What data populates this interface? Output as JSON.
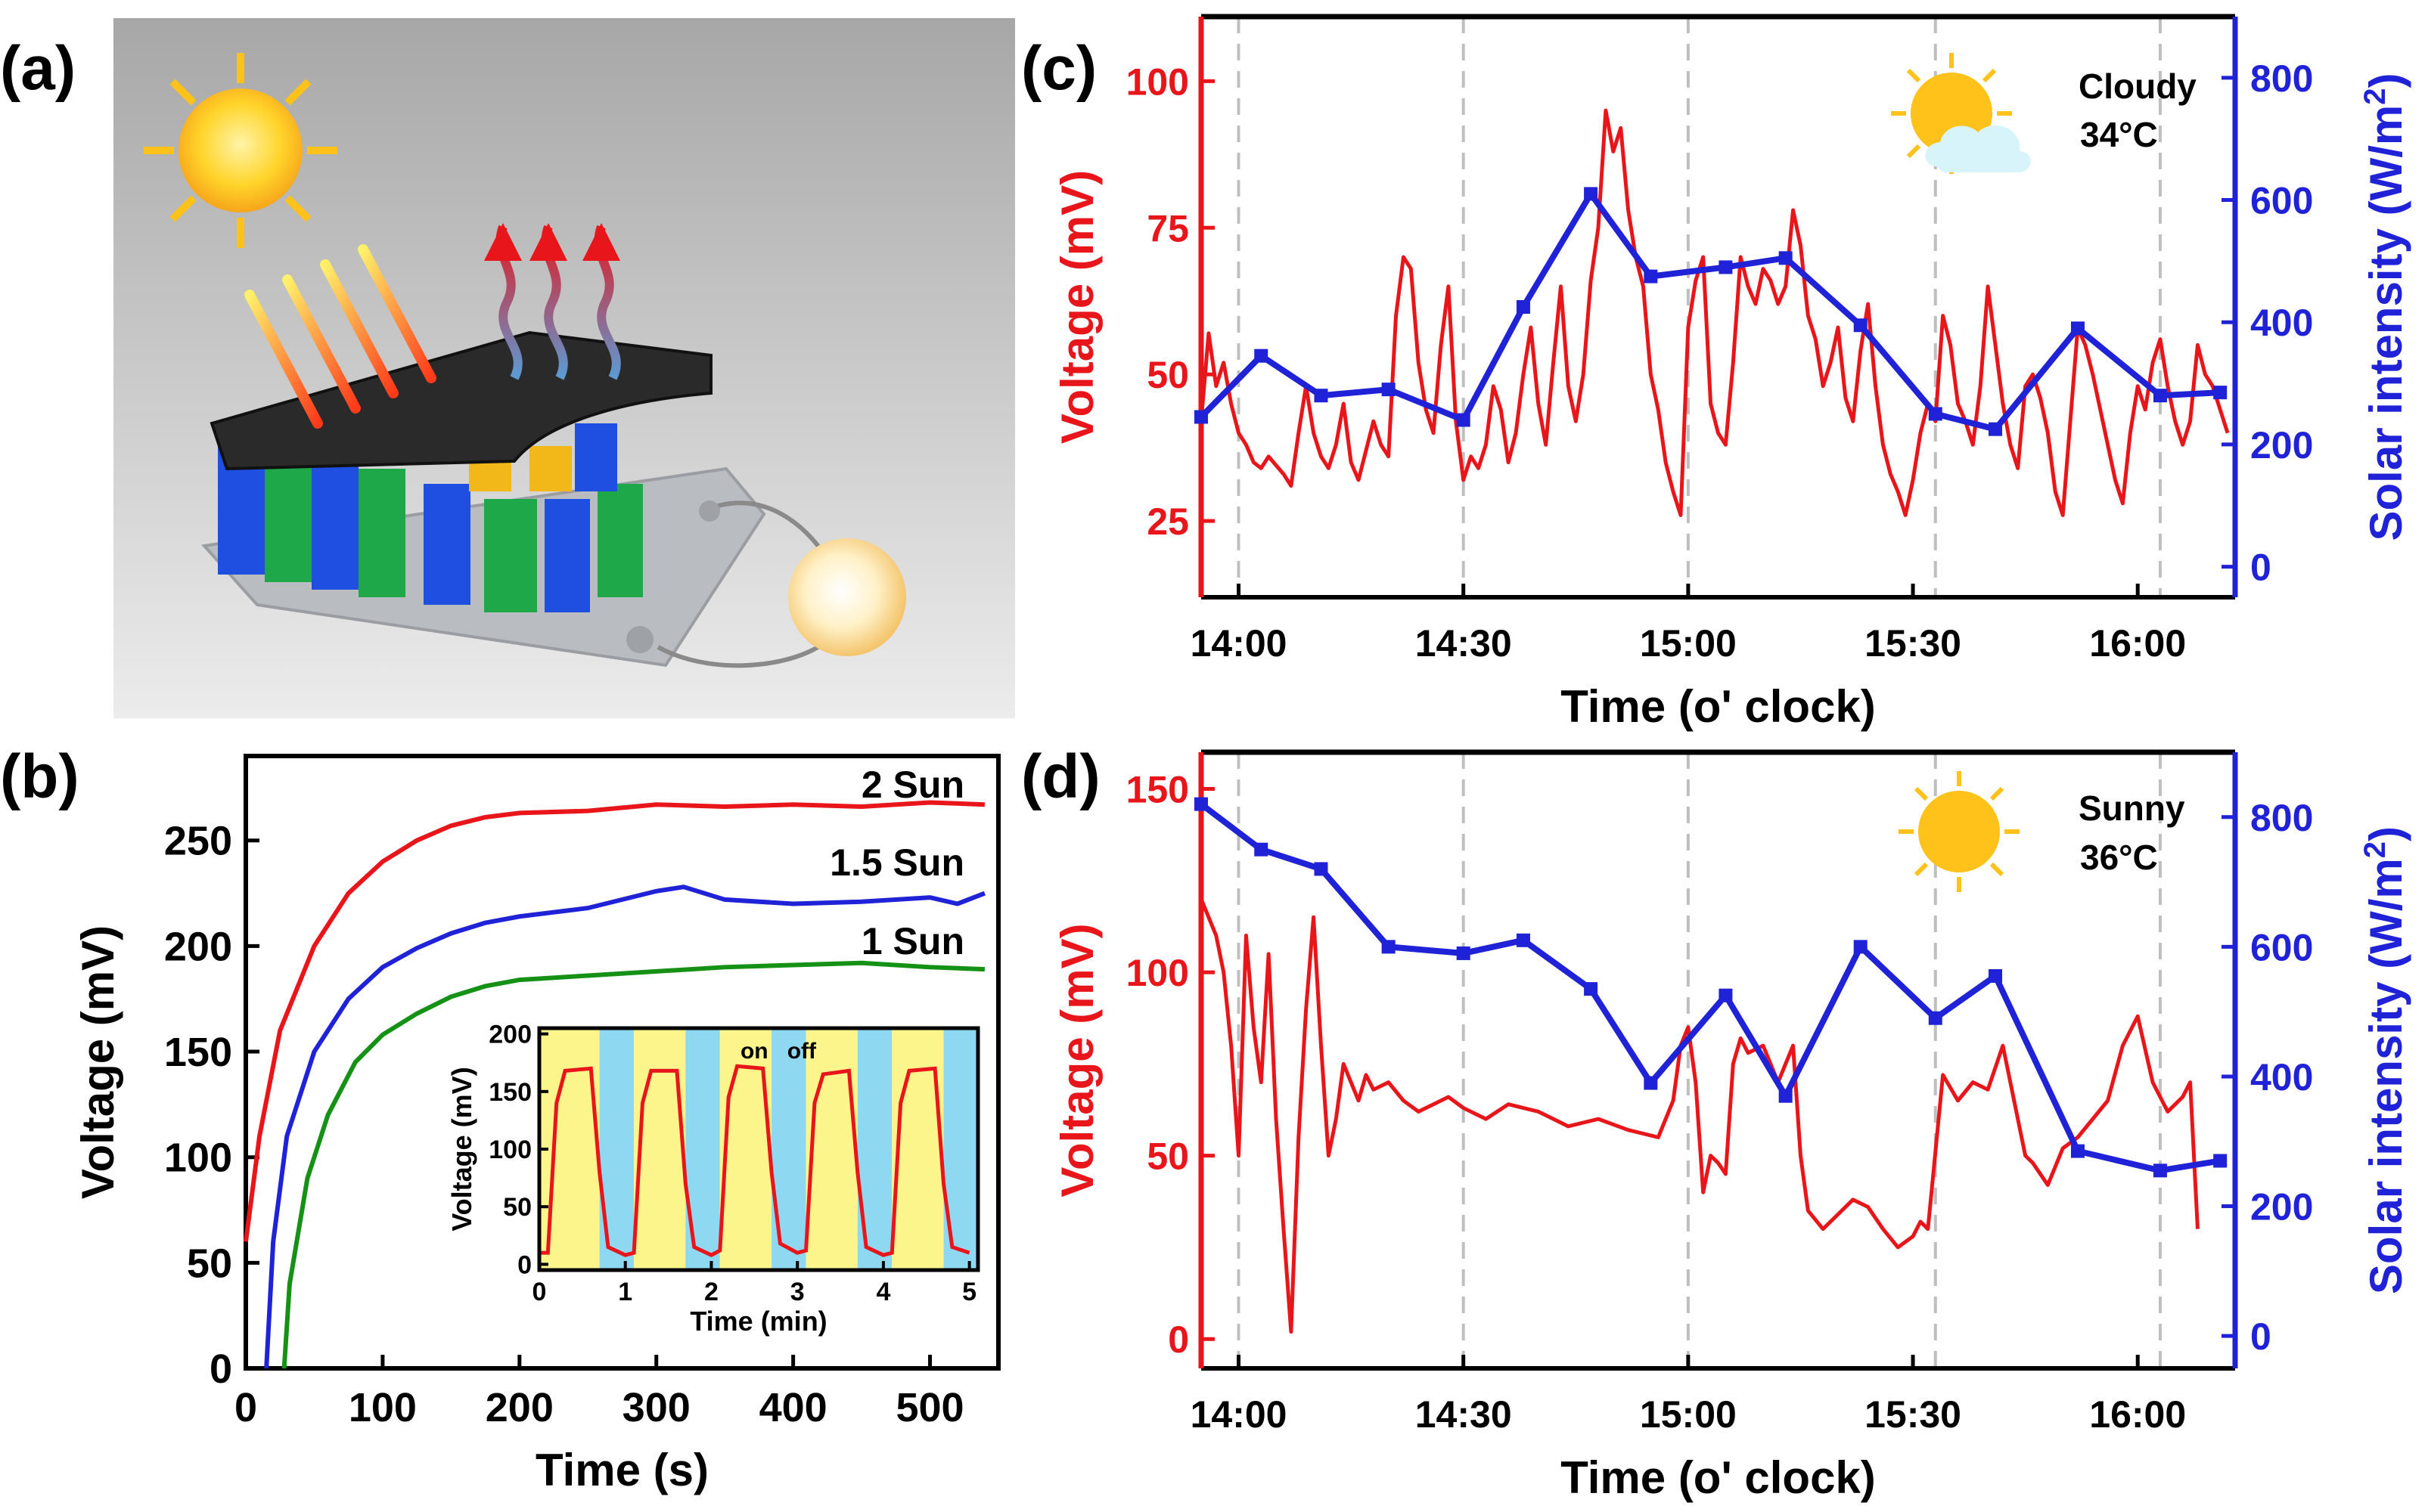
{
  "colors": {
    "red": "#e8161b",
    "blue": "#1f22d6",
    "green": "#159215",
    "dash": "#bfbfbf",
    "inset_yellow": "#fbf58c",
    "inset_cyan": "#8fd8f2"
  },
  "panels": {
    "a": {
      "label": "(a)"
    },
    "b": {
      "label": "(b)"
    },
    "c": {
      "label": "(c)",
      "weather": "Cloudy",
      "temperature": "34°C",
      "weather_icon": "sun-cloud-icon"
    },
    "d": {
      "label": "(d)",
      "weather": "Sunny",
      "temperature": "36°C",
      "weather_icon": "sun-icon"
    }
  },
  "chart_data": [
    {
      "id": "b",
      "type": "line",
      "xlabel": "Time (s)",
      "ylabel": "Voltage (mV)",
      "xlim": [
        0,
        550
      ],
      "ylim": [
        0,
        290
      ],
      "xticks": [
        0,
        100,
        200,
        300,
        400,
        500
      ],
      "yticks": [
        0,
        50,
        100,
        150,
        200,
        250
      ],
      "series": [
        {
          "name": "2 Sun",
          "color": "#e8161b",
          "x": [
            0,
            10,
            25,
            50,
            75,
            100,
            125,
            150,
            175,
            200,
            250,
            300,
            350,
            400,
            450,
            500,
            540
          ],
          "y": [
            60,
            110,
            160,
            200,
            225,
            240,
            250,
            257,
            261,
            263,
            264,
            267,
            266,
            267,
            266,
            268,
            267
          ]
        },
        {
          "name": "1.5 Sun",
          "color": "#1f22d6",
          "x": [
            15,
            20,
            30,
            50,
            75,
            100,
            125,
            150,
            175,
            200,
            250,
            300,
            320,
            350,
            400,
            450,
            500,
            520,
            540
          ],
          "y": [
            0,
            60,
            110,
            150,
            175,
            190,
            199,
            206,
            211,
            214,
            218,
            226,
            228,
            222,
            220,
            221,
            223,
            220,
            225
          ]
        },
        {
          "name": "1 Sun",
          "color": "#159215",
          "x": [
            28,
            32,
            45,
            60,
            80,
            100,
            125,
            150,
            175,
            200,
            250,
            300,
            350,
            400,
            450,
            500,
            540
          ],
          "y": [
            0,
            40,
            90,
            120,
            145,
            158,
            168,
            176,
            181,
            184,
            186,
            188,
            190,
            191,
            192,
            190,
            189
          ]
        }
      ],
      "inset": {
        "type": "line",
        "xlabel": "Time (min)",
        "ylabel": "Voltage (mV)",
        "xlim": [
          0,
          5.1
        ],
        "ylim": [
          -5,
          205
        ],
        "xticks": [
          0,
          1,
          2,
          3,
          4,
          5
        ],
        "yticks": [
          0,
          50,
          100,
          150,
          200
        ],
        "on_label": "on",
        "off_label": "off",
        "shading": [
          [
            0,
            0.7,
            "on"
          ],
          [
            0.7,
            1.1,
            "off"
          ],
          [
            1.1,
            1.7,
            "on"
          ],
          [
            1.7,
            2.1,
            "off"
          ],
          [
            2.1,
            2.7,
            "on"
          ],
          [
            2.7,
            3.1,
            "off"
          ],
          [
            3.1,
            3.7,
            "on"
          ],
          [
            3.7,
            4.1,
            "off"
          ],
          [
            4.1,
            4.7,
            "on"
          ],
          [
            4.7,
            5.1,
            "off"
          ]
        ],
        "series": [
          {
            "name": "inset-voltage",
            "color": "#e8161b",
            "x": [
              0,
              0.1,
              0.2,
              0.3,
              0.6,
              0.7,
              0.8,
              1.0,
              1.1,
              1.2,
              1.3,
              1.6,
              1.7,
              1.8,
              2.0,
              2.1,
              2.2,
              2.3,
              2.6,
              2.7,
              2.8,
              3.0,
              3.1,
              3.2,
              3.3,
              3.6,
              3.7,
              3.8,
              4.0,
              4.1,
              4.2,
              4.3,
              4.6,
              4.7,
              4.8,
              5.0
            ],
            "y": [
              10,
              10,
              140,
              168,
              170,
              80,
              15,
              8,
              10,
              140,
              168,
              168,
              70,
              15,
              8,
              12,
              145,
              172,
              170,
              80,
              18,
              10,
              12,
              140,
              165,
              168,
              80,
              15,
              8,
              10,
              140,
              168,
              170,
              70,
              15,
              10
            ]
          }
        ]
      }
    },
    {
      "id": "c",
      "type": "line",
      "xlabel": "Time (o' clock)",
      "ylabel": "Voltage (mV)",
      "y2label": "Solar intensity (W/m2)",
      "y2label_main": "Solar intensity (W/m",
      "y2label_sup": "2",
      "y2label_close": ")",
      "xlim": [
        -5,
        133
      ],
      "ylim": [
        12,
        111
      ],
      "y2lim": [
        -50,
        900
      ],
      "xtick_labels": [
        "14:00",
        "14:30",
        "15:00",
        "15:30",
        "16:00"
      ],
      "xticks": [
        0,
        30,
        60,
        90,
        120
      ],
      "dashed_x": [
        0,
        30,
        60,
        93,
        123
      ],
      "yticks": [
        25,
        50,
        75,
        100
      ],
      "y2ticks": [
        0,
        200,
        400,
        600,
        800
      ],
      "series": [
        {
          "name": "Voltage",
          "axis": "left",
          "color": "#e8161b",
          "x": [
            -5,
            -4,
            -3,
            -2,
            -1,
            0,
            1,
            2,
            3,
            4,
            6,
            7,
            8,
            9,
            10,
            11,
            12,
            13,
            14,
            15,
            16,
            17,
            18,
            19,
            20,
            21,
            22,
            23,
            24,
            25,
            26,
            27,
            28,
            29,
            30,
            31,
            32,
            33,
            34,
            35,
            36,
            37,
            38,
            39,
            40,
            41,
            42,
            43,
            44,
            45,
            46,
            47,
            48,
            49,
            50,
            51,
            52,
            53,
            54,
            55,
            56,
            57,
            58,
            59,
            60,
            61,
            62,
            63,
            64,
            65,
            66,
            67,
            68,
            69,
            70,
            71,
            72,
            73,
            74,
            75,
            76,
            77,
            78,
            79,
            80,
            81,
            82,
            83,
            84,
            85,
            86,
            87,
            88,
            89,
            90,
            91,
            92,
            93,
            94,
            95,
            96,
            97,
            98,
            99,
            100,
            101,
            102,
            103,
            104,
            105,
            106,
            107,
            108,
            109,
            110,
            111,
            112,
            113,
            114,
            115,
            116,
            117,
            118,
            119,
            120,
            121,
            122,
            123,
            124,
            125,
            126,
            127,
            128,
            129,
            130,
            131,
            132
          ],
          "y": [
            42,
            57,
            48,
            52,
            45,
            40,
            38,
            35,
            34,
            36,
            33,
            31,
            40,
            48,
            40,
            36,
            34,
            38,
            45,
            35,
            32,
            37,
            42,
            38,
            36,
            60,
            70,
            68,
            52,
            44,
            40,
            55,
            65,
            42,
            32,
            36,
            34,
            38,
            48,
            44,
            35,
            40,
            50,
            58,
            45,
            38,
            52,
            65,
            48,
            42,
            50,
            66,
            75,
            95,
            88,
            92,
            78,
            70,
            65,
            50,
            44,
            35,
            30,
            26,
            58,
            66,
            70,
            45,
            40,
            38,
            52,
            70,
            65,
            62,
            68,
            66,
            62,
            65,
            78,
            72,
            60,
            56,
            48,
            52,
            58,
            46,
            42,
            54,
            62,
            48,
            38,
            33,
            30,
            26,
            32,
            40,
            45,
            42,
            60,
            55,
            45,
            42,
            38,
            48,
            65,
            55,
            45,
            38,
            34,
            48,
            50,
            46,
            40,
            30,
            26,
            42,
            58,
            55,
            50,
            44,
            38,
            32,
            28,
            40,
            48,
            44,
            52,
            56,
            48,
            42,
            38,
            42,
            55,
            50,
            48,
            44,
            40
          ]
        },
        {
          "name": "Solar intensity",
          "axis": "right",
          "color": "#1f22d6",
          "x": [
            -5,
            3,
            11,
            20,
            30,
            38,
            47,
            55,
            65,
            73,
            83,
            93,
            101,
            112,
            123,
            131
          ],
          "y": [
            245,
            345,
            280,
            290,
            240,
            425,
            610,
            475,
            490,
            505,
            395,
            250,
            225,
            390,
            280,
            285
          ]
        }
      ]
    },
    {
      "id": "d",
      "type": "line",
      "xlabel": "Time (o' clock)",
      "ylabel": "Voltage (mV)",
      "y2label": "Solar intensity (W/m2)",
      "y2label_main": "Solar intensity (W/m",
      "y2label_sup": "2",
      "y2label_close": ")",
      "xlim": [
        -5,
        133
      ],
      "ylim": [
        -8,
        160
      ],
      "y2lim": [
        -50,
        900
      ],
      "xtick_labels": [
        "14:00",
        "14:30",
        "15:00",
        "15:30",
        "16:00"
      ],
      "xticks": [
        0,
        30,
        60,
        90,
        120
      ],
      "dashed_x": [
        0,
        30,
        60,
        93,
        123
      ],
      "yticks": [
        0,
        50,
        100,
        150
      ],
      "y2ticks": [
        0,
        200,
        400,
        600,
        800
      ],
      "series": [
        {
          "name": "Voltage",
          "axis": "left",
          "color": "#e8161b",
          "x": [
            -5,
            -4,
            -3,
            -2,
            -1,
            0,
            1,
            2,
            3,
            4,
            5,
            6,
            7,
            8,
            9,
            10,
            11,
            12,
            13,
            14,
            15,
            16,
            17,
            18,
            20,
            22,
            24,
            26,
            28,
            30,
            33,
            36,
            40,
            44,
            48,
            52,
            56,
            58,
            59,
            60,
            61,
            62,
            63,
            64,
            65,
            66,
            67,
            68,
            70,
            72,
            73,
            74,
            75,
            76,
            78,
            80,
            82,
            84,
            86,
            88,
            90,
            91,
            92,
            94,
            96,
            98,
            100,
            102,
            104,
            105,
            106,
            108,
            110,
            112,
            114,
            116,
            118,
            120,
            122,
            124,
            126,
            127,
            128
          ],
          "y": [
            120,
            115,
            110,
            100,
            80,
            50,
            110,
            85,
            70,
            105,
            60,
            30,
            2,
            55,
            90,
            115,
            80,
            50,
            60,
            75,
            70,
            65,
            72,
            68,
            70,
            65,
            62,
            64,
            66,
            63,
            60,
            64,
            62,
            58,
            60,
            57,
            55,
            65,
            80,
            85,
            70,
            40,
            50,
            48,
            45,
            75,
            82,
            78,
            80,
            70,
            75,
            80,
            50,
            35,
            30,
            34,
            38,
            36,
            30,
            25,
            28,
            32,
            30,
            72,
            65,
            70,
            68,
            80,
            60,
            50,
            48,
            42,
            52,
            55,
            60,
            65,
            80,
            88,
            70,
            62,
            66,
            70,
            30
          ]
        },
        {
          "name": "Solar intensity",
          "axis": "right",
          "color": "#1f22d6",
          "x": [
            -5,
            3,
            11,
            20,
            30,
            38,
            47,
            55,
            65,
            73,
            83,
            93,
            101,
            112,
            123,
            131
          ],
          "y": [
            820,
            750,
            720,
            600,
            590,
            610,
            535,
            390,
            525,
            370,
            600,
            490,
            555,
            285,
            255,
            270
          ]
        }
      ]
    }
  ]
}
